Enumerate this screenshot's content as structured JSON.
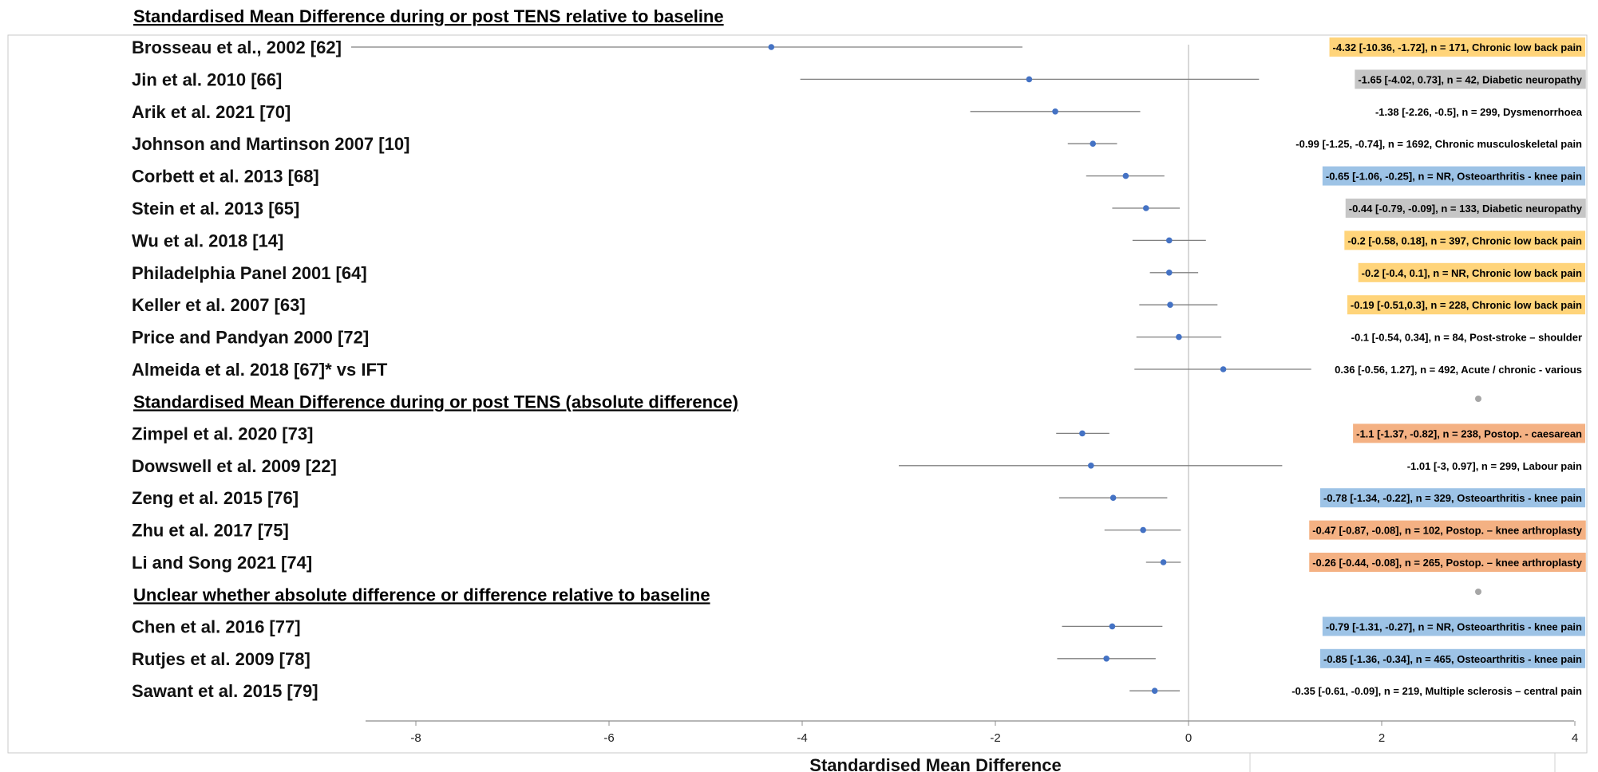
{
  "chart_data": {
    "type": "forest",
    "xlabel": "Standardised Mean Difference",
    "xlim": [
      -8.5,
      4
    ],
    "xticks": [
      -8,
      -6,
      -4,
      -2,
      0,
      2,
      4
    ],
    "reference_line": 0,
    "marker_color": "#4472c4",
    "category_colors": {
      "Chronic low back pain": "#ffd47a",
      "Diabetic neuropathy": "#c6c6c6",
      "Osteoarthritis - knee pain": "#9dc3e6",
      "Postop.": "#f4b183"
    },
    "sections": [
      {
        "heading": "Standardised Mean Difference during or post TENS relative to baseline",
        "rows": [
          {
            "study": "Brosseau et al., 2002 [62]",
            "est": -4.32,
            "lo": -10.36,
            "hi": -1.72,
            "label": "-4.32 [-10.36, -1.72], n = 171, Chronic low back pain",
            "highlight": "#ffd47a"
          },
          {
            "study": "Jin et al. 2010 [66]",
            "est": -1.65,
            "lo": -4.02,
            "hi": 0.73,
            "label": "-1.65 [-4.02, 0.73], n = 42, Diabetic neuropathy",
            "highlight": "#c6c6c6"
          },
          {
            "study": "Arik et al. 2021  [70]",
            "est": -1.38,
            "lo": -2.26,
            "hi": -0.5,
            "label": "-1.38 [-2.26, -0.5], n = 299, Dysmenorrhoea",
            "highlight": ""
          },
          {
            "study": "Johnson and Martinson 2007 [10]",
            "est": -0.99,
            "lo": -1.25,
            "hi": -0.74,
            "label": "-0.99 [-1.25, -0.74], n = 1692, Chronic musculoskeletal pain",
            "highlight": ""
          },
          {
            "study": "Corbett et al. 2013 [68]",
            "est": -0.65,
            "lo": -1.06,
            "hi": -0.25,
            "label": "-0.65 [-1.06, -0.25], n = NR, Osteoarthritis  - knee pain",
            "highlight": "#9dc3e6"
          },
          {
            "study": "Stein et al. 2013 [65]",
            "est": -0.44,
            "lo": -0.79,
            "hi": -0.09,
            "label": "-0.44 [-0.79, -0.09], n = 133, Diabetic neuropathy",
            "highlight": "#c6c6c6"
          },
          {
            "study": "Wu et al. 2018 [14]",
            "est": -0.2,
            "lo": -0.58,
            "hi": 0.18,
            "label": "-0.2 [-0.58, 0.18], n = 397, Chronic low back pain",
            "highlight": "#ffd47a"
          },
          {
            "study": "Philadelphia Panel 2001 [64]",
            "est": -0.2,
            "lo": -0.4,
            "hi": 0.1,
            "label": "-0.2 [-0.4, 0.1], n = NR, Chronic low back pain",
            "highlight": "#ffd47a"
          },
          {
            "study": "Keller et al. 2007 [63]",
            "est": -0.19,
            "lo": -0.51,
            "hi": 0.3,
            "label": "-0.19 [-0.51,0.3], n = 228, Chronic low back pain",
            "highlight": "#ffd47a"
          },
          {
            "study": "Price and Pandyan 2000 [72]",
            "est": -0.1,
            "lo": -0.54,
            "hi": 0.34,
            "label": "-0.1 [-0.54, 0.34], n = 84, Post-stroke – shoulder",
            "highlight": ""
          },
          {
            "study": "Almeida et al. 2018  [67]* vs IFT",
            "est": 0.36,
            "lo": -0.56,
            "hi": 1.27,
            "label": "0.36 [-0.56, 1.27], n = 492, Acute / chronic - various",
            "highlight": ""
          }
        ]
      },
      {
        "heading": "Standardised Mean Difference during or post TENS (absolute difference)",
        "rows": [
          {
            "study": "Zimpel et al. 2020 [73]",
            "est": -1.1,
            "lo": -1.37,
            "hi": -0.82,
            "label": "-1.1 [-1.37, -0.82], n = 238, Postop. - caesarean",
            "highlight": "#f4b183"
          },
          {
            "study": "Dowswell et al. 2009 [22]",
            "est": -1.01,
            "lo": -3,
            "hi": 0.97,
            "label": "-1.01 [-3, 0.97], n = 299, Labour pain",
            "highlight": ""
          },
          {
            "study": "Zeng et al. 2015 [76]",
            "est": -0.78,
            "lo": -1.34,
            "hi": -0.22,
            "label": "-0.78 [-1.34, -0.22], n = 329, Osteoarthritis  - knee pain",
            "highlight": "#9dc3e6"
          },
          {
            "study": "Zhu et al. 2017 [75]",
            "est": -0.47,
            "lo": -0.87,
            "hi": -0.08,
            "label": "-0.47 [-0.87, -0.08], n = 102, Postop. – knee arthroplasty",
            "highlight": "#f4b183"
          },
          {
            "study": "Li and Song 2021 [74]",
            "est": -0.26,
            "lo": -0.44,
            "hi": -0.08,
            "label": "-0.26 [-0.44, -0.08], n = 265, Postop. – knee arthroplasty",
            "highlight": "#f4b183"
          }
        ]
      },
      {
        "heading": "Unclear whether absolute difference or difference relative to baseline",
        "rows": [
          {
            "study": "Chen et al. 2016 [77]",
            "est": -0.79,
            "lo": -1.31,
            "hi": -0.27,
            "label": "-0.79 [-1.31, -0.27], n = NR, Osteoarthritis  - knee pain",
            "highlight": "#9dc3e6"
          },
          {
            "study": "Rutjes et al. 2009 [78]",
            "est": -0.85,
            "lo": -1.36,
            "hi": -0.34,
            "label": "-0.85 [-1.36, -0.34], n = 465, Osteoarthritis  - knee pain",
            "highlight": "#9dc3e6"
          },
          {
            "study": "Sawant et al. 2015 [79]",
            "est": -0.35,
            "lo": -0.61,
            "hi": -0.09,
            "label": "-0.35 [-0.61, -0.09], n = 219, Multiple sclerosis – central pain",
            "highlight": ""
          }
        ]
      }
    ]
  }
}
